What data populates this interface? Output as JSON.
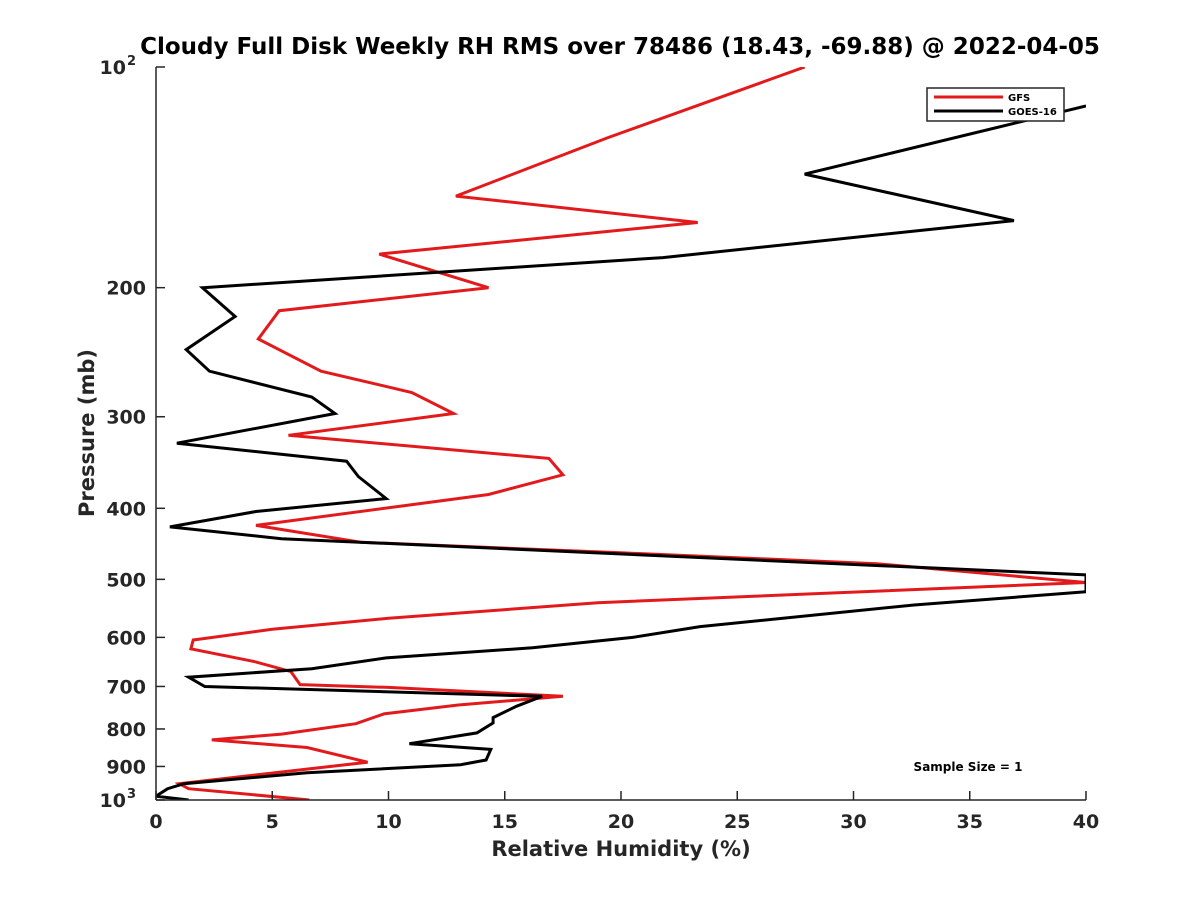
{
  "chart_data": {
    "type": "line",
    "title": "Cloudy Full Disk Weekly RH RMS over 78486 (18.43, -69.88) @ 2022-04-05",
    "xlabel": "Relative Humidity (%)",
    "ylabel": "Pressure (mb)",
    "xlim": [
      0,
      40
    ],
    "ylim": [
      100,
      1000
    ],
    "y_scale": "log",
    "y_reversed": true,
    "grid": false,
    "legend_location": "top-right",
    "x_ticks": [
      "0",
      "5",
      "10",
      "15",
      "20",
      "25",
      "30",
      "35",
      "40"
    ],
    "x_tick_values": [
      0,
      5,
      10,
      15,
      20,
      25,
      30,
      35,
      40
    ],
    "y_ticks": [
      {
        "value": 100,
        "base": "10",
        "exp": "2"
      },
      {
        "value": 200,
        "label": "200"
      },
      {
        "value": 300,
        "label": "300"
      },
      {
        "value": 400,
        "label": "400"
      },
      {
        "value": 500,
        "label": "500"
      },
      {
        "value": 600,
        "label": "600"
      },
      {
        "value": 700,
        "label": "700"
      },
      {
        "value": 800,
        "label": "800"
      },
      {
        "value": 900,
        "label": "900"
      },
      {
        "value": 1000,
        "base": "10",
        "exp": "3"
      }
    ],
    "annotation": "Sample Size = 1",
    "series": [
      {
        "name": "GFS",
        "color": "#e31a1c",
        "points": [
          [
            27.9,
            100
          ],
          [
            19.4,
            125
          ],
          [
            12.9,
            150
          ],
          [
            23.3,
            163
          ],
          [
            9.6,
            180
          ],
          [
            14.3,
            200
          ],
          [
            5.3,
            215
          ],
          [
            4.4,
            235
          ],
          [
            7.1,
            260
          ],
          [
            11.0,
            278
          ],
          [
            12.8,
            297
          ],
          [
            5.7,
            318
          ],
          [
            16.9,
            342
          ],
          [
            17.5,
            360
          ],
          [
            14.3,
            383
          ],
          [
            4.3,
            422
          ],
          [
            8.8,
            445
          ],
          [
            20.0,
            460
          ],
          [
            31.0,
            476
          ],
          [
            40.0,
            505
          ],
          [
            19.0,
            538
          ],
          [
            10.0,
            565
          ],
          [
            5.0,
            585
          ],
          [
            1.6,
            605
          ],
          [
            1.5,
            622
          ],
          [
            4.2,
            647
          ],
          [
            5.8,
            668
          ],
          [
            6.2,
            696
          ],
          [
            10.0,
            702
          ],
          [
            17.5,
            722
          ],
          [
            13.0,
            742
          ],
          [
            9.8,
            763
          ],
          [
            8.6,
            787
          ],
          [
            5.4,
            813
          ],
          [
            2.4,
            828
          ],
          [
            6.5,
            848
          ],
          [
            9.1,
            888
          ],
          [
            1.0,
            950
          ],
          [
            1.4,
            965
          ],
          [
            6.6,
            1000
          ]
        ]
      },
      {
        "name": "GOES-16",
        "color": "#000000",
        "points": [
          [
            40.0,
            113
          ],
          [
            27.9,
            140
          ],
          [
            36.9,
            162
          ],
          [
            21.8,
            182
          ],
          [
            2.0,
            200
          ],
          [
            3.4,
            219
          ],
          [
            1.3,
            243
          ],
          [
            2.3,
            260
          ],
          [
            6.7,
            282
          ],
          [
            7.7,
            297
          ],
          [
            0.9,
            326
          ],
          [
            8.2,
            345
          ],
          [
            8.7,
            362
          ],
          [
            9.9,
            388
          ],
          [
            4.3,
            404
          ],
          [
            0.6,
            424
          ],
          [
            5.4,
            440
          ],
          [
            40.0,
            493
          ],
          [
            40.0,
            520
          ],
          [
            32.6,
            542
          ],
          [
            23.4,
            580
          ],
          [
            20.5,
            600
          ],
          [
            16.2,
            620
          ],
          [
            9.9,
            640
          ],
          [
            6.7,
            662
          ],
          [
            1.4,
            680
          ],
          [
            2.1,
            700
          ],
          [
            16.6,
            722
          ],
          [
            15.5,
            745
          ],
          [
            14.5,
            772
          ],
          [
            14.5,
            785
          ],
          [
            13.8,
            810
          ],
          [
            10.9,
            838
          ],
          [
            14.4,
            853
          ],
          [
            14.2,
            882
          ],
          [
            13.1,
            895
          ],
          [
            6.5,
            918
          ],
          [
            1.2,
            950
          ],
          [
            0.5,
            965
          ],
          [
            0.0,
            988
          ],
          [
            1.4,
            1000
          ]
        ]
      }
    ]
  }
}
